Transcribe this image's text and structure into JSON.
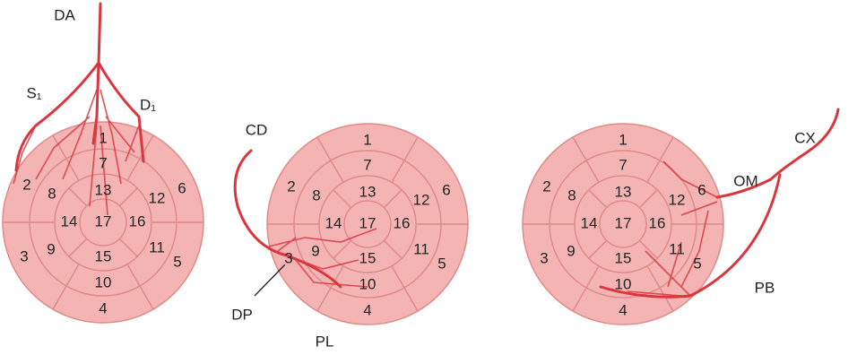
{
  "diagrams": [
    {
      "segments": [
        "1",
        "2",
        "3",
        "4",
        "5",
        "6",
        "7",
        "8",
        "9",
        "10",
        "11",
        "12",
        "13",
        "14",
        "15",
        "16",
        "17"
      ],
      "arteries": [
        "DA",
        "S₁",
        "D₁"
      ]
    },
    {
      "segments": [
        "1",
        "2",
        "3",
        "4",
        "5",
        "6",
        "7",
        "8",
        "9",
        "10",
        "11",
        "12",
        "13",
        "14",
        "15",
        "16",
        "17"
      ],
      "arteries": [
        "CD",
        "DP",
        "PL"
      ]
    },
    {
      "segments": [
        "1",
        "2",
        "3",
        "4",
        "5",
        "6",
        "7",
        "8",
        "9",
        "10",
        "11",
        "12",
        "13",
        "14",
        "15",
        "16",
        "17"
      ],
      "arteries": [
        "CX",
        "OM",
        "PB"
      ]
    }
  ]
}
